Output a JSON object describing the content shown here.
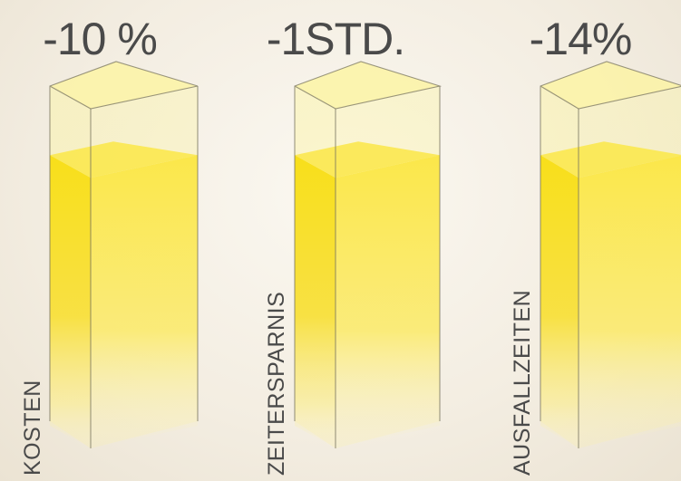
{
  "chart_data": {
    "type": "bar",
    "style": "3d-glass-columns",
    "categories": [
      "KOSTEN",
      "ZEITERSPARNIS",
      "AUSFALLZEITEN"
    ],
    "value_labels": [
      "-10 %",
      "-1STD.",
      "-14%"
    ],
    "fill_levels": [
      0.83,
      0.83,
      0.83
    ],
    "colors": {
      "fill": "#f7dd16",
      "fill_light": "#fbec72",
      "glass": "#fbf6b0",
      "edge": "#7a7560",
      "text": "#4a4a4a"
    }
  }
}
